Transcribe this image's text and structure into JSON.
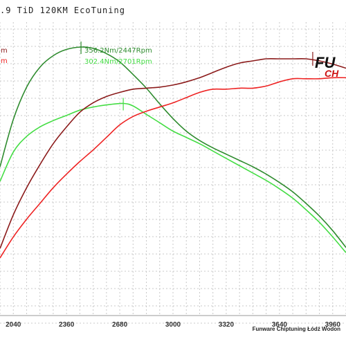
{
  "title": ".9 TiD 120KM EcoTuning",
  "footer": "Funware Chiptuning Łódź Wodon",
  "logo": {
    "text": "FU",
    "sub": "CH"
  },
  "colors": {
    "tuned_torque": "#2e8b2e",
    "stock_torque": "#44dd44",
    "tuned_power": "#8b1a1a",
    "stock_power": "#ee2222",
    "grid": "#c8c8c8"
  },
  "chart_data": {
    "type": "line",
    "title": ".9 TiD 120KM EcoTuning",
    "xlabel": "",
    "ylabel": "",
    "x_ticks": [
      2040,
      2360,
      2680,
      3000,
      3320,
      3640,
      3960
    ],
    "xlim": [
      1960,
      4040
    ],
    "grid": true,
    "legend_left": [
      {
        "text": "m",
        "color": "#8b1a1a"
      },
      {
        "text": "m",
        "color": "#ee2222"
      }
    ],
    "annotations": [
      {
        "text": "356.2Nm/2447Rpm",
        "series": "tuned_torque",
        "x": 2447,
        "y": 356.2
      },
      {
        "text": "302.4Nm/2701Rpm",
        "series": "stock_torque",
        "x": 2701,
        "y": 302.4
      }
    ],
    "series": [
      {
        "key": "tuned_torque",
        "color": "#2e8b2e",
        "x": [
          1960,
          2040,
          2120,
          2200,
          2280,
          2360,
          2447,
          2520,
          2600,
          2680,
          2760,
          2840,
          2920,
          3000,
          3080,
          3160,
          3240,
          3320,
          3400,
          3480,
          3560,
          3640,
          3720,
          3800,
          3880,
          3960,
          4040
        ],
        "y": [
          242,
          287,
          318,
          337,
          348,
          354,
          356.2,
          355,
          350,
          342,
          330,
          317,
          302,
          288,
          276,
          267,
          260,
          254,
          248,
          242,
          235,
          227,
          218,
          207,
          195,
          181,
          165
        ]
      },
      {
        "key": "stock_torque",
        "color": "#44dd44",
        "x": [
          1960,
          2040,
          2120,
          2200,
          2280,
          2360,
          2440,
          2520,
          2600,
          2701,
          2760,
          2840,
          2920,
          3000,
          3080,
          3160,
          3240,
          3320,
          3400,
          3480,
          3560,
          3640,
          3720,
          3800,
          3880,
          3960,
          4040
        ],
        "y": [
          228,
          256,
          271,
          280,
          286,
          291,
          296,
          299,
          301,
          302.4,
          300,
          292,
          284,
          276,
          270,
          264,
          257,
          250,
          243,
          236,
          229,
          221,
          212,
          201,
          189,
          175,
          160
        ]
      },
      {
        "key": "tuned_power",
        "color": "#8b1a1a",
        "x": [
          1960,
          2040,
          2120,
          2200,
          2280,
          2360,
          2440,
          2520,
          2600,
          2680,
          2760,
          2840,
          2920,
          3000,
          3080,
          3160,
          3240,
          3320,
          3400,
          3480,
          3560,
          3640,
          3720,
          3800,
          3880,
          3960,
          4040
        ],
        "y": [
          164,
          196,
          222,
          244,
          264,
          280,
          294,
          303,
          309,
          313,
          316,
          317,
          318,
          320,
          323,
          327,
          332,
          337,
          341,
          343,
          345,
          345,
          345,
          345,
          343,
          340,
          336
        ]
      },
      {
        "key": "stock_power",
        "color": "#ee2222",
        "x": [
          1960,
          2040,
          2120,
          2200,
          2280,
          2360,
          2440,
          2520,
          2600,
          2680,
          2760,
          2840,
          2920,
          3000,
          3080,
          3160,
          3240,
          3320,
          3400,
          3480,
          3560,
          3640,
          3720,
          3800,
          3880,
          3960,
          4040
        ],
        "y": [
          155,
          175,
          192,
          207,
          222,
          235,
          247,
          258,
          270,
          282,
          290,
          295,
          299,
          303,
          308,
          313,
          316,
          316,
          317,
          317,
          319,
          323,
          326,
          326,
          326,
          327,
          327
        ]
      }
    ],
    "ylim": [
      100,
      380
    ]
  }
}
